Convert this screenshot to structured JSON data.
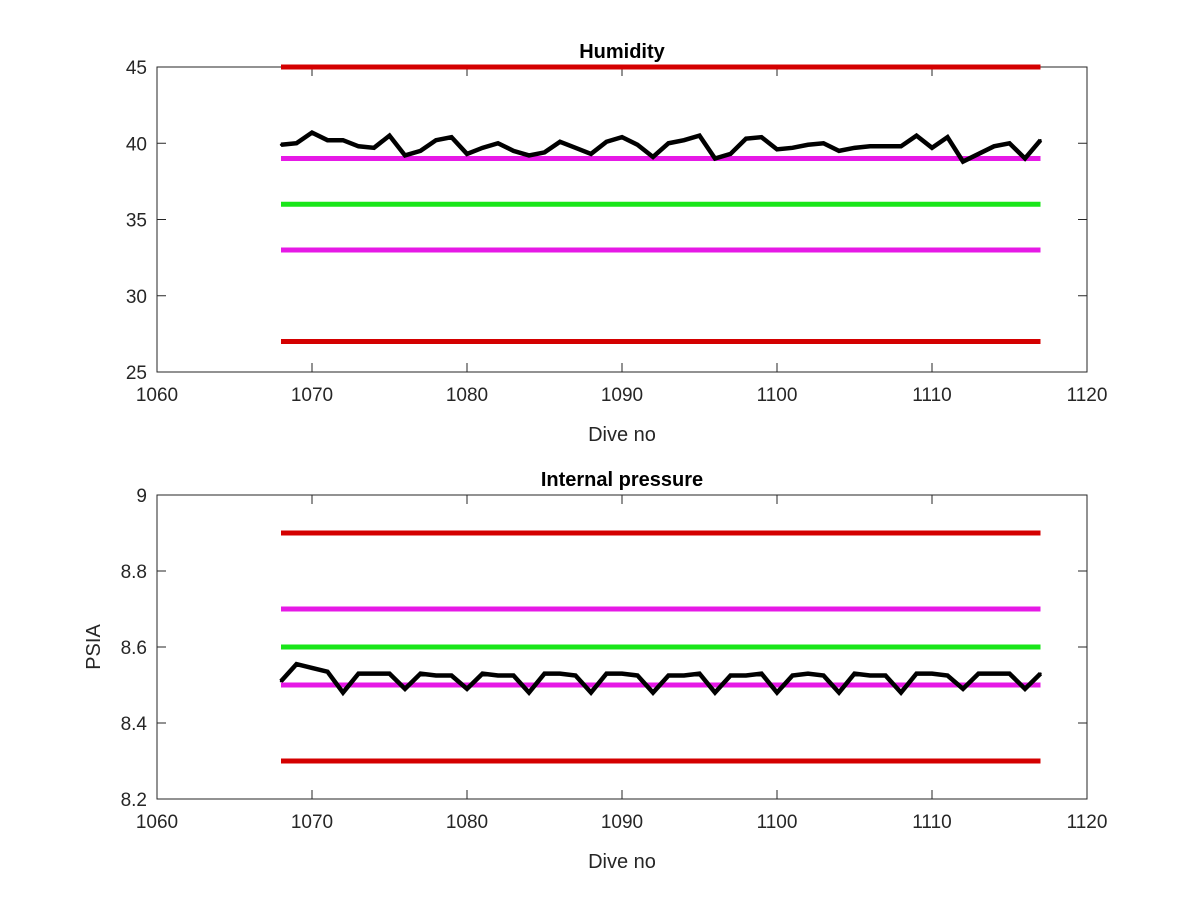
{
  "chart_data": [
    {
      "type": "line",
      "title": "Humidity",
      "xlabel": "Dive no",
      "ylabel": "",
      "xlim": [
        1060,
        1120
      ],
      "ylim": [
        25,
        45
      ],
      "x_ticks": [
        1060,
        1070,
        1080,
        1090,
        1100,
        1110,
        1120
      ],
      "y_ticks": [
        25,
        30,
        35,
        40,
        45
      ],
      "x_tick_labels": [
        "1060",
        "1070",
        "1080",
        "1090",
        "1100",
        "1110",
        "1120"
      ],
      "y_tick_labels": [
        "25",
        "30",
        "35",
        "40",
        "45"
      ],
      "grid": false,
      "limit_lines": [
        {
          "value": 45,
          "color": "#d40000",
          "x_range": [
            1068,
            1117
          ]
        },
        {
          "value": 27,
          "color": "#d40000",
          "x_range": [
            1068,
            1117
          ]
        },
        {
          "value": 39,
          "color": "#e619e6",
          "x_range": [
            1068,
            1117
          ]
        },
        {
          "value": 33,
          "color": "#e619e6",
          "x_range": [
            1068,
            1117
          ]
        },
        {
          "value": 36,
          "color": "#19e619",
          "x_range": [
            1068,
            1117
          ]
        }
      ],
      "series": [
        {
          "color": "#000000",
          "x": [
            1068,
            1069,
            1070,
            1071,
            1072,
            1073,
            1074,
            1075,
            1076,
            1077,
            1078,
            1079,
            1080,
            1081,
            1082,
            1083,
            1084,
            1085,
            1086,
            1087,
            1088,
            1089,
            1090,
            1091,
            1092,
            1093,
            1094,
            1095,
            1096,
            1097,
            1098,
            1099,
            1100,
            1101,
            1102,
            1103,
            1104,
            1105,
            1106,
            1107,
            1108,
            1109,
            1110,
            1111,
            1112,
            1113,
            1114,
            1115,
            1116,
            1117
          ],
          "y": [
            39.9,
            40.0,
            40.7,
            40.2,
            40.2,
            39.8,
            39.7,
            40.5,
            39.2,
            39.5,
            40.2,
            40.4,
            39.3,
            39.7,
            40.0,
            39.5,
            39.2,
            39.4,
            40.1,
            39.7,
            39.3,
            40.1,
            40.4,
            39.9,
            39.1,
            40.0,
            40.2,
            40.5,
            39.0,
            39.3,
            40.3,
            40.4,
            39.6,
            39.7,
            39.9,
            40.0,
            39.5,
            39.7,
            39.8,
            39.8,
            39.8,
            40.5,
            39.7,
            40.4,
            38.8,
            39.3,
            39.8,
            40.0,
            39.0,
            40.2
          ]
        }
      ]
    },
    {
      "type": "line",
      "title": "Internal pressure",
      "xlabel": "Dive no",
      "ylabel": "PSIA",
      "xlim": [
        1060,
        1120
      ],
      "ylim": [
        8.2,
        9.0
      ],
      "x_ticks": [
        1060,
        1070,
        1080,
        1090,
        1100,
        1110,
        1120
      ],
      "y_ticks": [
        8.2,
        8.4,
        8.6,
        8.8,
        9.0
      ],
      "x_tick_labels": [
        "1060",
        "1070",
        "1080",
        "1090",
        "1100",
        "1110",
        "1120"
      ],
      "y_tick_labels": [
        "8.2",
        "8.4",
        "8.6",
        "8.8",
        "9"
      ],
      "grid": false,
      "limit_lines": [
        {
          "value": 8.9,
          "color": "#d40000",
          "x_range": [
            1068,
            1117
          ]
        },
        {
          "value": 8.3,
          "color": "#d40000",
          "x_range": [
            1068,
            1117
          ]
        },
        {
          "value": 8.7,
          "color": "#e619e6",
          "x_range": [
            1068,
            1117
          ]
        },
        {
          "value": 8.5,
          "color": "#e619e6",
          "x_range": [
            1068,
            1117
          ]
        },
        {
          "value": 8.6,
          "color": "#19e619",
          "x_range": [
            1068,
            1117
          ]
        }
      ],
      "series": [
        {
          "color": "#000000",
          "x": [
            1068,
            1069,
            1070,
            1071,
            1072,
            1073,
            1074,
            1075,
            1076,
            1077,
            1078,
            1079,
            1080,
            1081,
            1082,
            1083,
            1084,
            1085,
            1086,
            1087,
            1088,
            1089,
            1090,
            1091,
            1092,
            1093,
            1094,
            1095,
            1096,
            1097,
            1098,
            1099,
            1100,
            1101,
            1102,
            1103,
            1104,
            1105,
            1106,
            1107,
            1108,
            1109,
            1110,
            1111,
            1112,
            1113,
            1114,
            1115,
            1116,
            1117
          ],
          "y": [
            8.51,
            8.555,
            8.545,
            8.535,
            8.48,
            8.53,
            8.53,
            8.53,
            8.49,
            8.53,
            8.525,
            8.525,
            8.49,
            8.53,
            8.525,
            8.525,
            8.48,
            8.53,
            8.53,
            8.525,
            8.48,
            8.53,
            8.53,
            8.525,
            8.48,
            8.525,
            8.525,
            8.53,
            8.48,
            8.525,
            8.525,
            8.53,
            8.48,
            8.525,
            8.53,
            8.525,
            8.48,
            8.53,
            8.525,
            8.525,
            8.48,
            8.53,
            8.53,
            8.525,
            8.49,
            8.53,
            8.53,
            8.53,
            8.49,
            8.53
          ]
        }
      ]
    }
  ]
}
